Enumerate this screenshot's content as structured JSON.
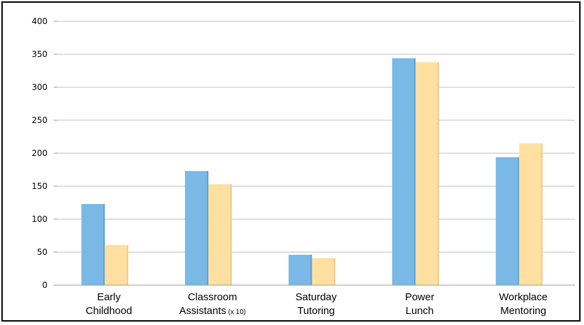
{
  "chart_data": {
    "type": "bar",
    "categories": [
      {
        "line1": "Early",
        "line2": "Childhood",
        "note": ""
      },
      {
        "line1": "Classroom",
        "line2": "Assistants",
        "note": "(x 10)"
      },
      {
        "line1": "Saturday",
        "line2": "Tutoring",
        "note": ""
      },
      {
        "line1": "Power",
        "line2": "Lunch",
        "note": ""
      },
      {
        "line1": "Workplace",
        "line2": "Mentoring",
        "note": ""
      }
    ],
    "series": [
      {
        "values": [
          123,
          173,
          46,
          344,
          194
        ],
        "color": "#7ab8e6"
      },
      {
        "values": [
          61,
          153,
          41,
          338,
          215
        ],
        "color": "#ffe0a0"
      }
    ],
    "ylim": [
      0,
      400
    ],
    "yticks": [
      "0",
      "50",
      "100",
      "150",
      "200",
      "250",
      "300",
      "350",
      "400"
    ],
    "grid": true,
    "legend": "none"
  }
}
